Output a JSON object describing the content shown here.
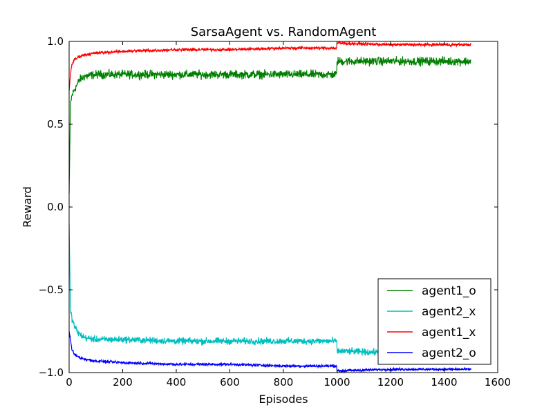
{
  "chart_data": {
    "type": "line",
    "title": "SarsaAgent vs. RandomAgent",
    "xlabel": "Episodes",
    "ylabel": "Reward",
    "xlim": [
      0,
      1600
    ],
    "ylim": [
      -1.0,
      1.0
    ],
    "xticks": [
      0,
      200,
      400,
      600,
      800,
      1000,
      1200,
      1400,
      1600
    ],
    "xtick_labels": [
      "0",
      "200",
      "400",
      "600",
      "800",
      "1000",
      "1200",
      "1400",
      "1600"
    ],
    "yticks": [
      1.0,
      0.5,
      0.0,
      -0.5,
      -1.0
    ],
    "ytick_labels": [
      "1.0",
      "0.5",
      "0.0",
      "−0.5",
      "−1.0"
    ],
    "grid": false,
    "legend_position": "lower-right",
    "series": [
      {
        "name": "agent1_o",
        "color": "#008000",
        "points": [
          [
            0,
            0.08
          ],
          [
            5,
            0.62
          ],
          [
            10,
            0.67
          ],
          [
            20,
            0.71
          ],
          [
            30,
            0.74
          ],
          [
            40,
            0.77
          ],
          [
            60,
            0.79
          ],
          [
            100,
            0.8
          ],
          [
            200,
            0.8
          ],
          [
            400,
            0.8
          ],
          [
            600,
            0.8
          ],
          [
            800,
            0.8
          ],
          [
            999,
            0.8
          ],
          [
            1000,
            0.88
          ],
          [
            1200,
            0.88
          ],
          [
            1400,
            0.88
          ],
          [
            1500,
            0.88
          ]
        ],
        "noise": 0.025
      },
      {
        "name": "agent2_x",
        "color": "#00bfbf",
        "points": [
          [
            0,
            -0.1
          ],
          [
            5,
            -0.62
          ],
          [
            10,
            -0.67
          ],
          [
            20,
            -0.72
          ],
          [
            30,
            -0.75
          ],
          [
            40,
            -0.77
          ],
          [
            60,
            -0.79
          ],
          [
            100,
            -0.8
          ],
          [
            200,
            -0.8
          ],
          [
            400,
            -0.81
          ],
          [
            600,
            -0.81
          ],
          [
            800,
            -0.81
          ],
          [
            999,
            -0.81
          ],
          [
            1000,
            -0.87
          ],
          [
            1200,
            -0.88
          ],
          [
            1400,
            -0.88
          ],
          [
            1500,
            -0.88
          ]
        ],
        "noise": 0.02
      },
      {
        "name": "agent1_x",
        "color": "#ff0000",
        "points": [
          [
            0,
            0.7
          ],
          [
            5,
            0.8
          ],
          [
            10,
            0.86
          ],
          [
            20,
            0.89
          ],
          [
            40,
            0.91
          ],
          [
            60,
            0.92
          ],
          [
            100,
            0.93
          ],
          [
            200,
            0.94
          ],
          [
            400,
            0.95
          ],
          [
            600,
            0.95
          ],
          [
            800,
            0.96
          ],
          [
            999,
            0.96
          ],
          [
            1000,
            0.99
          ],
          [
            1200,
            0.98
          ],
          [
            1400,
            0.98
          ],
          [
            1500,
            0.98
          ]
        ],
        "noise": 0.009
      },
      {
        "name": "agent2_o",
        "color": "#0000ff",
        "points": [
          [
            0,
            -0.75
          ],
          [
            5,
            -0.8
          ],
          [
            10,
            -0.86
          ],
          [
            20,
            -0.89
          ],
          [
            40,
            -0.91
          ],
          [
            60,
            -0.92
          ],
          [
            100,
            -0.93
          ],
          [
            200,
            -0.94
          ],
          [
            400,
            -0.95
          ],
          [
            600,
            -0.95
          ],
          [
            800,
            -0.96
          ],
          [
            999,
            -0.96
          ],
          [
            1000,
            -0.99
          ],
          [
            1200,
            -0.98
          ],
          [
            1400,
            -0.98
          ],
          [
            1500,
            -0.98
          ]
        ],
        "noise": 0.008
      }
    ]
  }
}
